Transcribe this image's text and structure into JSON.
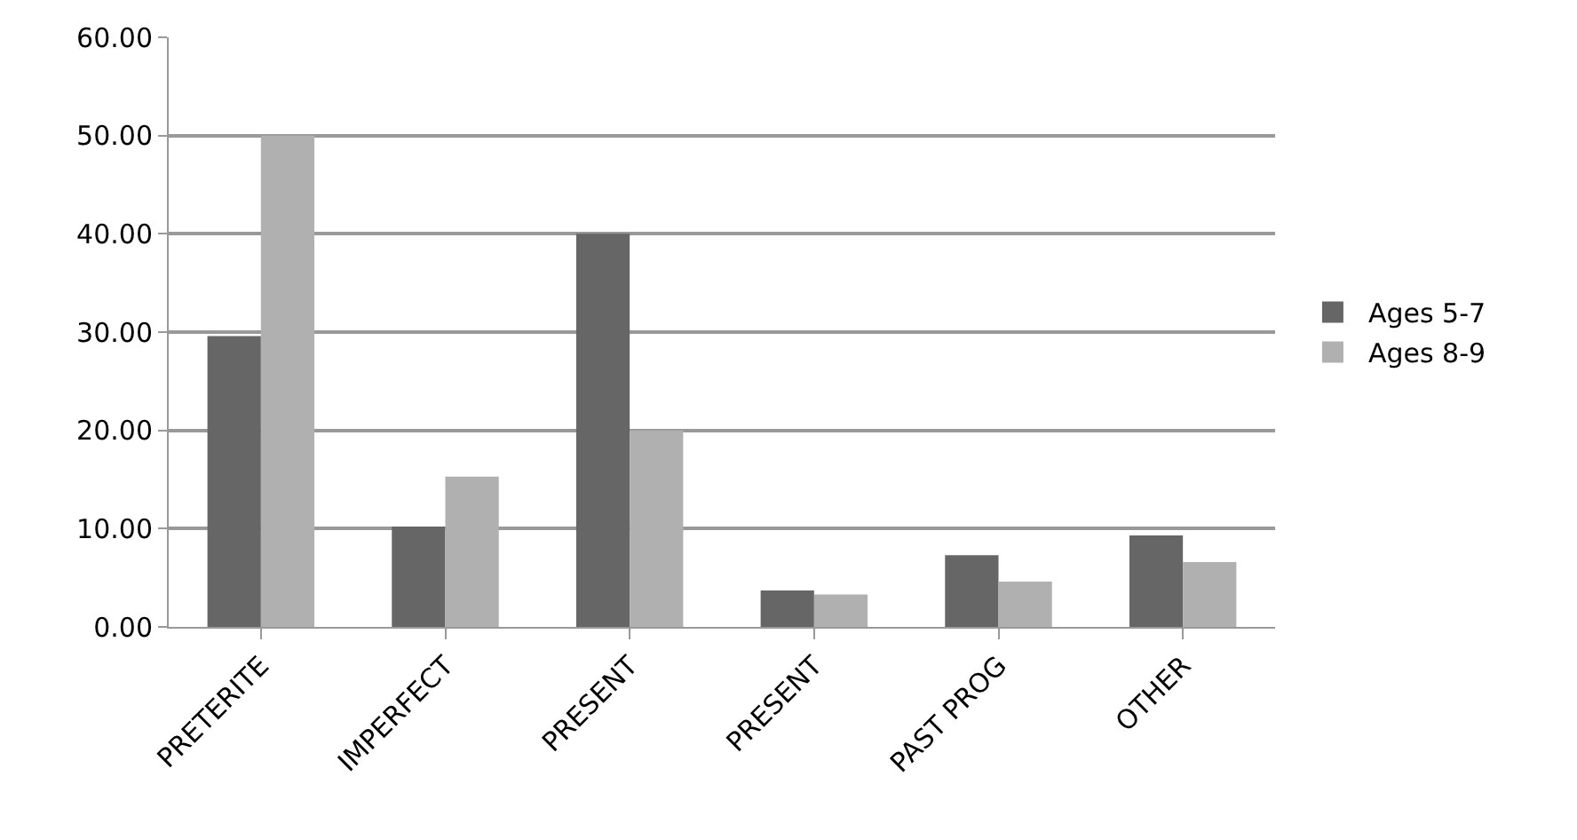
{
  "chart_data": {
    "type": "bar",
    "categories": [
      "PRETERITE",
      "IMPERFECT",
      "PRESENT",
      "PRESENT",
      "PAST PROG",
      "OTHER"
    ],
    "series": [
      {
        "name": "Ages 5-7",
        "color": "#666666",
        "values": [
          29.6,
          10.2,
          40.0,
          3.7,
          7.3,
          9.3
        ]
      },
      {
        "name": "Ages 8-9",
        "color": "#b0b0b0",
        "values": [
          50.0,
          15.3,
          20.0,
          3.3,
          4.6,
          6.6
        ]
      }
    ],
    "ylim": [
      0,
      60
    ],
    "yticks": [
      {
        "value": 0,
        "label": "0.00"
      },
      {
        "value": 10,
        "label": "10.00"
      },
      {
        "value": 20,
        "label": "20.00"
      },
      {
        "value": 30,
        "label": "30.00"
      },
      {
        "value": 40,
        "label": "40.00"
      },
      {
        "value": 50,
        "label": "50.00"
      },
      {
        "value": 60,
        "label": "60.00"
      }
    ],
    "grid": "y",
    "legend": "right"
  }
}
